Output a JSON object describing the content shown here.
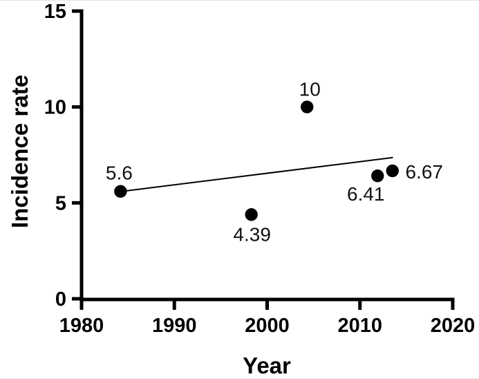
{
  "chart_data": {
    "type": "scatter",
    "title": "",
    "xlabel": "Year",
    "ylabel": "Incidence rate",
    "xlim": [
      1980,
      2020
    ],
    "ylim": [
      0,
      15
    ],
    "xticks": [
      1980,
      1990,
      2000,
      2010,
      2020
    ],
    "yticks": [
      0,
      5,
      10,
      15
    ],
    "grid": false,
    "legend": false,
    "marker": "black-filled-circle",
    "points": [
      {
        "x": 1984.2,
        "y": 5.6,
        "label": "5.6",
        "label_offset": [
          -2,
          -27
        ]
      },
      {
        "x": 1998.3,
        "y": 4.39,
        "label": "4.39",
        "label_offset": [
          1,
          28
        ]
      },
      {
        "x": 2004.3,
        "y": 10,
        "label": "10",
        "label_offset": [
          4,
          -26
        ]
      },
      {
        "x": 2011.9,
        "y": 6.41,
        "label": "6.41",
        "label_offset": [
          -17,
          26
        ]
      },
      {
        "x": 2013.5,
        "y": 6.67,
        "label": "6.67",
        "label_offset": [
          46,
          1
        ]
      }
    ],
    "trend_line": {
      "x1": 1984.2,
      "y1": 5.59,
      "x2": 2013.5,
      "y2": 7.36
    },
    "colors": {
      "ink": "#000000",
      "point": "#000000",
      "background": "#ffffff"
    }
  }
}
